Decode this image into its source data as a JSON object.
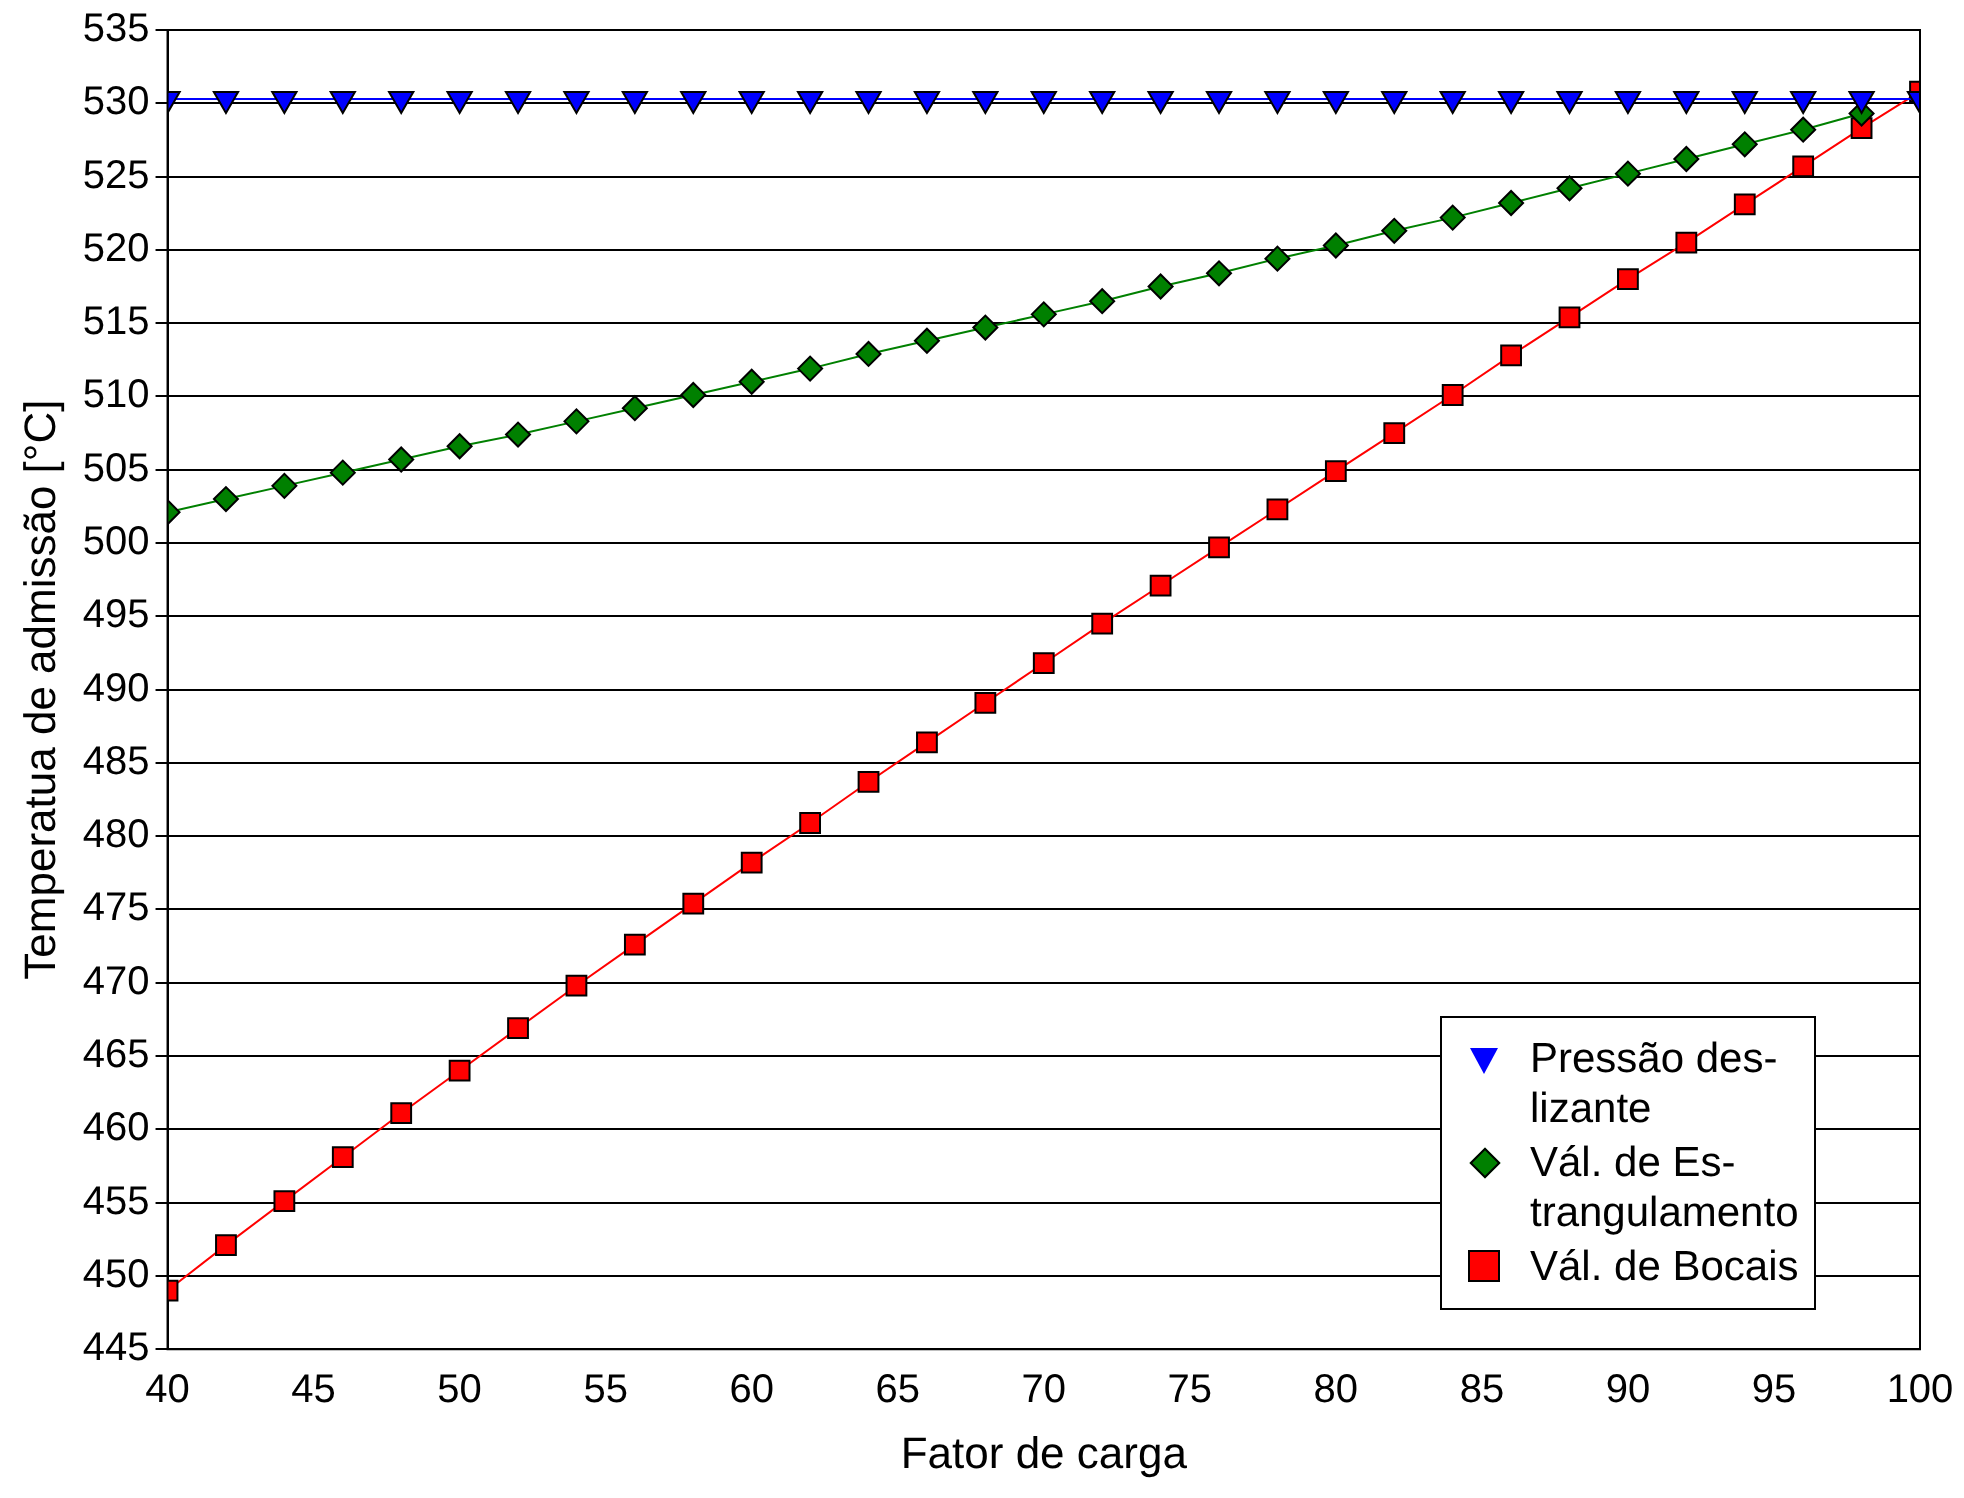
{
  "chart_data": {
    "type": "line",
    "xlabel": "Fator de carga",
    "ylabel": "Temperatua de admissão [°C]",
    "x": [
      40,
      42,
      44,
      46,
      48,
      50,
      52,
      54,
      56,
      58,
      60,
      62,
      64,
      66,
      68,
      70,
      72,
      74,
      76,
      78,
      80,
      82,
      84,
      86,
      88,
      90,
      92,
      94,
      96,
      98,
      100
    ],
    "xlim": [
      40,
      100
    ],
    "xticks": [
      40,
      45,
      50,
      55,
      60,
      65,
      70,
      75,
      80,
      85,
      90,
      95,
      100
    ],
    "ylim": [
      445,
      535
    ],
    "yticks": [
      445,
      450,
      455,
      460,
      465,
      470,
      475,
      480,
      485,
      490,
      495,
      500,
      505,
      510,
      515,
      520,
      525,
      530,
      535
    ],
    "grid": "y",
    "legend": "bottom right",
    "series": [
      {
        "name": "Pressão des-\nlizante",
        "color": "#0000ff",
        "marker": "triangle-down",
        "values": [
          530.3,
          530.3,
          530.3,
          530.3,
          530.3,
          530.3,
          530.3,
          530.3,
          530.3,
          530.3,
          530.3,
          530.3,
          530.3,
          530.3,
          530.3,
          530.3,
          530.3,
          530.3,
          530.3,
          530.3,
          530.3,
          530.3,
          530.3,
          530.3,
          530.3,
          530.3,
          530.3,
          530.3,
          530.3,
          530.3,
          530.3
        ]
      },
      {
        "name": "Vál. de Es-\ntrangulamento",
        "color": "#008000",
        "marker": "diamond",
        "values": [
          502.1,
          503.0,
          503.9,
          504.8,
          505.7,
          506.6,
          507.4,
          508.3,
          509.2,
          510.1,
          511.0,
          511.9,
          512.9,
          513.8,
          514.7,
          515.6,
          516.5,
          517.5,
          518.4,
          519.4,
          520.3,
          521.3,
          522.2,
          523.2,
          524.2,
          525.2,
          526.2,
          527.2,
          528.2,
          529.3,
          null
        ]
      },
      {
        "name": "Vál. de Bocais",
        "color": "#ff0000",
        "marker": "square",
        "values": [
          449.0,
          452.1,
          455.1,
          458.1,
          461.1,
          464.0,
          466.9,
          469.8,
          472.6,
          475.4,
          478.2,
          480.9,
          483.7,
          486.4,
          489.1,
          491.8,
          494.5,
          497.1,
          499.7,
          502.3,
          504.9,
          507.5,
          510.1,
          512.8,
          515.4,
          518.0,
          520.5,
          523.1,
          525.7,
          528.3,
          530.8
        ]
      }
    ]
  }
}
